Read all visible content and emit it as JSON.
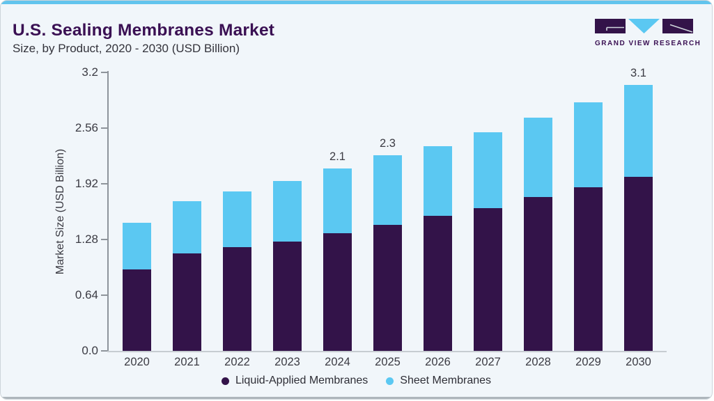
{
  "header": {
    "title": "U.S. Sealing Membranes Market",
    "subtitle": "Size, by Product, 2020 - 2030 (USD Billion)"
  },
  "logo": {
    "text": "GRAND VIEW RESEARCH"
  },
  "colors": {
    "liquid_applied": "#331349",
    "sheet": "#5BC8F2",
    "top_strip": "#62C4ED",
    "card_background": "#F1F6FA",
    "title_text": "#3A1053",
    "axis_text": "#3B3B43"
  },
  "chart_data": {
    "type": "bar",
    "stacked": true,
    "title": "U.S. Sealing Membranes Market Size, by Product, 2020 - 2030 (USD Billion)",
    "xlabel": "",
    "ylabel": "Market Size (USD Billion)",
    "ylim": [
      0,
      3.2
    ],
    "yticks": [
      "3.2",
      "2.56",
      "1.92",
      "1.28",
      "0.64",
      "0.0"
    ],
    "grid": false,
    "legend_position": "bottom",
    "categories": [
      "2020",
      "2021",
      "2022",
      "2023",
      "2024",
      "2025",
      "2026",
      "2027",
      "2028",
      "2029",
      "2030"
    ],
    "series": [
      {
        "name": "Liquid-Applied Membranes",
        "color": "#331349",
        "values": [
          0.94,
          1.12,
          1.19,
          1.26,
          1.35,
          1.45,
          1.55,
          1.64,
          1.77,
          1.88,
          2.0
        ]
      },
      {
        "name": "Sheet Membranes",
        "color": "#5BC8F2",
        "values": [
          0.53,
          0.6,
          0.64,
          0.69,
          0.75,
          0.8,
          0.8,
          0.87,
          0.91,
          0.98,
          1.06
        ]
      }
    ],
    "totals_shown": [
      "",
      "",
      "",
      "",
      "2.1",
      "2.3",
      "",
      "",
      "",
      "",
      "3.1"
    ]
  }
}
